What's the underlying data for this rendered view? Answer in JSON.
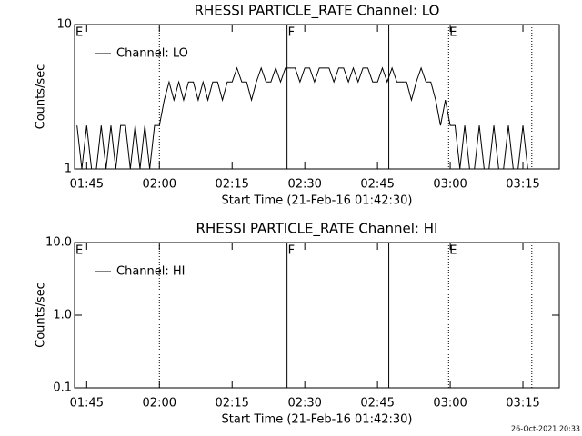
{
  "chart_data": [
    {
      "type": "line",
      "title": "RHESSI PARTICLE_RATE Channel: LO",
      "ylabel": "Counts/sec",
      "xlabel": "Start Time (21-Feb-16 01:42:30)",
      "log_y": true,
      "ylim": [
        1,
        10
      ],
      "yticks": [
        1,
        10
      ],
      "xlim": [
        "01:42:30",
        "03:22:30"
      ],
      "xticks": [
        {
          "value": "01:45",
          "label": "01:45"
        },
        {
          "value": "02:00",
          "label": "02:00"
        },
        {
          "value": "02:15",
          "label": "02:15"
        },
        {
          "value": "02:30",
          "label": "02:30"
        },
        {
          "value": "02:45",
          "label": "02:45"
        },
        {
          "value": "03:00",
          "label": "03:00"
        },
        {
          "value": "03:15",
          "label": "03:15"
        }
      ],
      "legend": "upper-left",
      "markers": [
        {
          "x": "01:42:30",
          "style": "dotted",
          "label": "E"
        },
        {
          "x": "02:00:00",
          "style": "dotted"
        },
        {
          "x": "02:26:20",
          "style": "solid",
          "label": "F"
        },
        {
          "x": "02:47:20",
          "style": "solid"
        },
        {
          "x": "02:59:40",
          "style": "dotted",
          "label": "E"
        },
        {
          "x": "03:16:50",
          "style": "dotted"
        }
      ],
      "x": [
        "01:43",
        "01:44",
        "01:45",
        "01:46",
        "01:47",
        "01:48",
        "01:49",
        "01:50",
        "01:51",
        "01:52",
        "01:53",
        "01:54",
        "01:55",
        "01:56",
        "01:57",
        "01:58",
        "01:59",
        "02:00",
        "02:01",
        "02:02",
        "02:03",
        "02:04",
        "02:05",
        "02:06",
        "02:07",
        "02:08",
        "02:09",
        "02:10",
        "02:11",
        "02:12",
        "02:13",
        "02:14",
        "02:15",
        "02:16",
        "02:17",
        "02:18",
        "02:19",
        "02:20",
        "02:21",
        "02:22",
        "02:23",
        "02:24",
        "02:25",
        "02:26",
        "02:27",
        "02:28",
        "02:29",
        "02:30",
        "02:31",
        "02:32",
        "02:33",
        "02:34",
        "02:35",
        "02:36",
        "02:37",
        "02:38",
        "02:39",
        "02:40",
        "02:41",
        "02:42",
        "02:43",
        "02:44",
        "02:45",
        "02:46",
        "02:47",
        "02:48",
        "02:49",
        "02:50",
        "02:51",
        "02:52",
        "02:53",
        "02:54",
        "02:55",
        "02:56",
        "02:57",
        "02:58",
        "02:59",
        "03:00",
        "03:01",
        "03:02",
        "03:03",
        "03:04",
        "03:05",
        "03:06",
        "03:07",
        "03:08",
        "03:09",
        "03:10",
        "03:11",
        "03:12",
        "03:13",
        "03:14",
        "03:15",
        "03:16"
      ],
      "series": [
        {
          "name": "Channel: LO",
          "color": "#000000",
          "values": [
            2,
            1,
            2,
            1,
            1,
            2,
            1,
            2,
            1,
            2,
            2,
            1,
            2,
            1,
            2,
            1,
            2,
            2,
            3,
            4,
            3,
            4,
            3,
            4,
            4,
            3,
            4,
            3,
            4,
            4,
            3,
            4,
            4,
            5,
            4,
            4,
            3,
            4,
            5,
            4,
            4,
            5,
            4,
            5,
            5,
            5,
            4,
            5,
            5,
            4,
            5,
            5,
            5,
            4,
            5,
            5,
            4,
            5,
            4,
            5,
            5,
            4,
            4,
            5,
            4,
            5,
            4,
            4,
            4,
            3,
            4,
            5,
            4,
            4,
            3,
            2,
            3,
            2,
            2,
            1,
            2,
            1,
            1,
            2,
            1,
            1,
            2,
            1,
            1,
            2,
            1,
            1,
            2,
            1
          ]
        }
      ]
    },
    {
      "type": "line",
      "title": "RHESSI PARTICLE_RATE Channel: HI",
      "ylabel": "Counts/sec",
      "xlabel": "Start Time (21-Feb-16 01:42:30)",
      "log_y": true,
      "ylim": [
        0.1,
        10
      ],
      "yticks": [
        {
          "value": 0.1,
          "label": "0.1"
        },
        {
          "value": 1,
          "label": "1.0"
        },
        {
          "value": 10,
          "label": "10.0"
        }
      ],
      "xlim": [
        "01:42:30",
        "03:22:30"
      ],
      "xticks": [
        {
          "value": "01:45",
          "label": "01:45"
        },
        {
          "value": "02:00",
          "label": "02:00"
        },
        {
          "value": "02:15",
          "label": "02:15"
        },
        {
          "value": "02:30",
          "label": "02:30"
        },
        {
          "value": "02:45",
          "label": "02:45"
        },
        {
          "value": "03:00",
          "label": "03:00"
        },
        {
          "value": "03:15",
          "label": "03:15"
        }
      ],
      "legend": "upper-left",
      "markers": [
        {
          "x": "01:42:30",
          "style": "dotted",
          "label": "E"
        },
        {
          "x": "02:00:00",
          "style": "dotted"
        },
        {
          "x": "02:26:20",
          "style": "solid",
          "label": "F"
        },
        {
          "x": "02:47:20",
          "style": "solid"
        },
        {
          "x": "02:59:40",
          "style": "dotted",
          "label": "E"
        },
        {
          "x": "03:16:50",
          "style": "dotted"
        }
      ],
      "x": [],
      "series": [
        {
          "name": "Channel: HI",
          "color": "#000000",
          "values": []
        }
      ]
    }
  ],
  "footer": "26-Oct-2021 20:33"
}
